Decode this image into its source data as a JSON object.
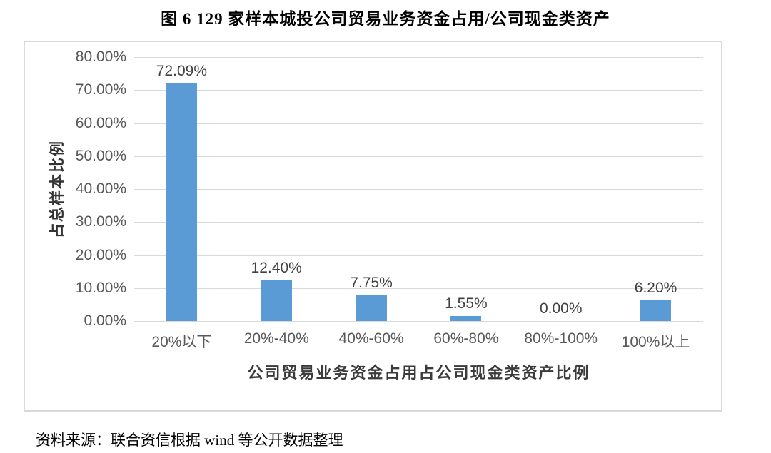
{
  "title": "图 6  129 家样本城投公司贸易业务资金占用/公司现金类资产",
  "source": "资料来源：联合资信根据 wind 等公开数据整理",
  "chart_data": {
    "type": "bar",
    "title": "图 6  129 家样本城投公司贸易业务资金占用/公司现金类资产",
    "categories": [
      "20%以下",
      "20%-40%",
      "40%-60%",
      "60%-80%",
      "80%-100%",
      "100%以上"
    ],
    "values": [
      72.09,
      12.4,
      7.75,
      1.55,
      0.0,
      6.2
    ],
    "data_labels": [
      "72.09%",
      "12.40%",
      "7.75%",
      "1.55%",
      "0.00%",
      "6.20%"
    ],
    "xlabel": "公司贸易业务资金占用占公司现金类资产比例",
    "ylabel": "占总样本比例",
    "ylim": [
      0,
      80
    ],
    "ytick_step": 10,
    "ytick_labels": [
      "0.00%",
      "10.00%",
      "20.00%",
      "30.00%",
      "40.00%",
      "50.00%",
      "60.00%",
      "70.00%",
      "80.00%"
    ],
    "grid": true,
    "legend": "none",
    "bar_color": "#5B9BD5",
    "gridline_color": "#D9D9D9",
    "tick_label_color": "#595959",
    "data_label_color": "#404040",
    "frame_border_color": "#D9D9D9"
  }
}
